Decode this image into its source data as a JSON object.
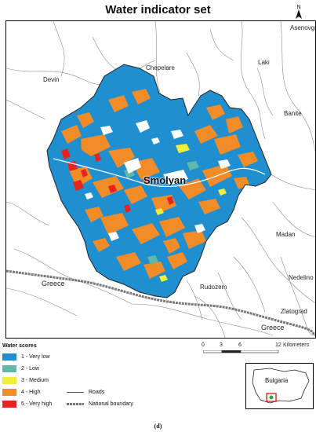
{
  "title": "Water indicator set",
  "north_label": "N",
  "places": {
    "asenovgrad": "Asenovgrad",
    "devin": "Devin",
    "chepelare": "Chepelare",
    "laki": "Laki",
    "banite": "Banite",
    "smolyan": "Smolyan",
    "madan": "Madan",
    "nedelino": "Nedelino",
    "greece_left": "Greece",
    "rudozem": "Rudozem",
    "zlatograd": "Zlatograd",
    "greece_bottom": "Greece"
  },
  "scale": {
    "ticks": [
      "0",
      "3",
      "6",
      "12"
    ],
    "unit": "Kilometers"
  },
  "legend": {
    "title": "Water scores",
    "classes": [
      {
        "label": "1 - Very low",
        "color": "#1f8fcf"
      },
      {
        "label": "2 - Low",
        "color": "#5fb8a8"
      },
      {
        "label": "3 - Medium",
        "color": "#f2ef3a"
      },
      {
        "label": "4 - High",
        "color": "#f28c28"
      },
      {
        "label": "5 - Very high",
        "color": "#e8231e"
      }
    ],
    "roads_label": "Roads",
    "boundary_label": "National boundary"
  },
  "inset": {
    "label": "Bulgaria"
  },
  "caption": "(d)"
}
